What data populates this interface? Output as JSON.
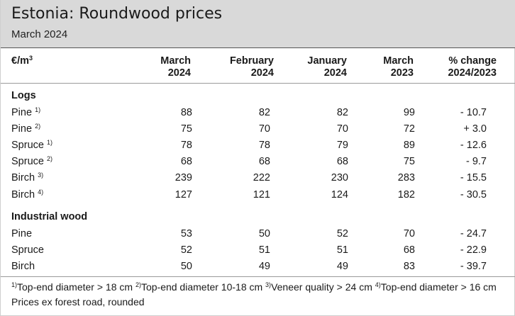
{
  "header": {
    "title": "Estonia: Roundwood prices",
    "subtitle": "March 2024"
  },
  "columns": {
    "unit": "€/m",
    "unit_sup": "3",
    "col1_line1": "March",
    "col1_line2": "2024",
    "col2_line1": "February",
    "col2_line2": "2024",
    "col3_line1": "January",
    "col3_line2": "2024",
    "col4_line1": "March",
    "col4_line2": "2023",
    "col5_line1": "% change",
    "col5_line2": "2024/2023"
  },
  "logs": {
    "heading": "Logs",
    "rows": [
      {
        "label": "Pine",
        "sup": "1)",
        "v": [
          "88",
          "82",
          "82",
          "99",
          "- 10.7"
        ]
      },
      {
        "label": "Pine",
        "sup": "2)",
        "v": [
          "75",
          "70",
          "70",
          "72",
          "+ 3.0"
        ]
      },
      {
        "label": "Spruce",
        "sup": "1)",
        "v": [
          "78",
          "78",
          "79",
          "89",
          "- 12.6"
        ]
      },
      {
        "label": "Spruce",
        "sup": "2)",
        "v": [
          "68",
          "68",
          "68",
          "75",
          "- 9.7"
        ]
      },
      {
        "label": "Birch",
        "sup": "3)",
        "v": [
          "239",
          "222",
          "230",
          "283",
          "- 15.5"
        ]
      },
      {
        "label": "Birch",
        "sup": "4)",
        "v": [
          "127",
          "121",
          "124",
          "182",
          "- 30.5"
        ]
      }
    ]
  },
  "industrial": {
    "heading": "Industrial wood",
    "rows": [
      {
        "label": "Pine",
        "v": [
          "53",
          "50",
          "52",
          "70",
          "- 24.7"
        ]
      },
      {
        "label": "Spruce",
        "v": [
          "52",
          "51",
          "51",
          "68",
          "- 22.9"
        ]
      },
      {
        "label": "Birch",
        "v": [
          "50",
          "49",
          "49",
          "83",
          "- 39.7"
        ]
      }
    ]
  },
  "footnotes": {
    "n1_sup": "1)",
    "n1": "Top-end diameter > 18 cm",
    "n2_sup": "2)",
    "n2": "Top-end diameter 10-18 cm",
    "n3_sup": "3)",
    "n3": "Veneer quality > 24 cm",
    "n4_sup": "4)",
    "n4": "Top-end diameter > 16 cm",
    "note": "Prices ex forest road, rounded"
  }
}
